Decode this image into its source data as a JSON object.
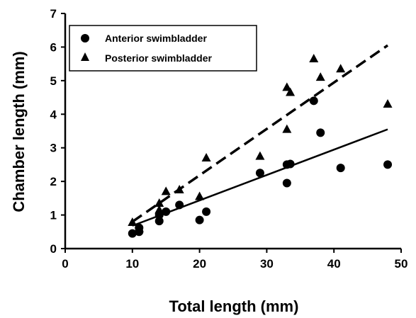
{
  "chart_data": {
    "type": "scatter",
    "title": "",
    "xlabel": "Total length (mm)",
    "ylabel": "Chamber length (mm)",
    "xlim": [
      0,
      50
    ],
    "ylim": [
      0,
      7
    ],
    "xticks": [
      "0",
      "10",
      "20",
      "30",
      "40",
      "50"
    ],
    "yticks": [
      "0",
      "1",
      "2",
      "3",
      "4",
      "5",
      "6",
      "7"
    ],
    "grid": false,
    "legend_position": "top-left",
    "series": [
      {
        "name": "Anterior swimbladder",
        "marker": "circle",
        "color": "#000000",
        "points": [
          [
            10,
            0.45
          ],
          [
            11,
            0.5
          ],
          [
            11,
            0.62
          ],
          [
            14,
            0.82
          ],
          [
            14,
            1.0
          ],
          [
            15,
            1.1
          ],
          [
            17,
            1.3
          ],
          [
            20,
            0.85
          ],
          [
            21,
            1.1
          ],
          [
            29,
            2.25
          ],
          [
            33,
            1.95
          ],
          [
            33,
            2.5
          ],
          [
            33.5,
            2.52
          ],
          [
            37,
            4.4
          ],
          [
            38,
            3.45
          ],
          [
            41,
            2.4
          ],
          [
            48,
            2.5
          ]
        ],
        "trend": {
          "style": "solid",
          "x": [
            10,
            48
          ],
          "y": [
            0.68,
            3.55
          ]
        }
      },
      {
        "name": "Posterior swimbladder",
        "marker": "triangle",
        "color": "#000000",
        "points": [
          [
            10,
            0.78
          ],
          [
            11,
            0.6
          ],
          [
            14,
            1.35
          ],
          [
            14,
            1.15
          ],
          [
            15,
            1.7
          ],
          [
            17,
            1.75
          ],
          [
            20,
            1.55
          ],
          [
            21,
            2.7
          ],
          [
            29,
            2.75
          ],
          [
            33,
            4.8
          ],
          [
            33,
            3.55
          ],
          [
            33.5,
            4.65
          ],
          [
            37,
            5.65
          ],
          [
            38,
            5.1
          ],
          [
            41,
            5.35
          ],
          [
            48,
            4.3
          ]
        ],
        "trend": {
          "style": "dashed",
          "x": [
            10,
            48
          ],
          "y": [
            0.8,
            6.05
          ]
        }
      }
    ]
  }
}
